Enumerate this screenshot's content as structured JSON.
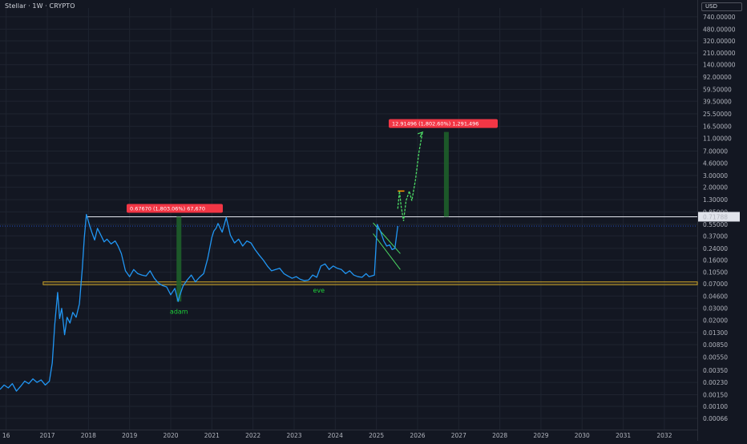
{
  "header": {
    "title": "Stellar · 1W · CRYPTO",
    "currency": "USD"
  },
  "chart_data": {
    "type": "line",
    "title": "Stellar · 1W · CRYPTO",
    "xlabel": "",
    "ylabel": "",
    "y_scale": "log",
    "ylim": [
      0.00066,
      740
    ],
    "xlim": [
      2015.85,
      2032.8
    ],
    "grid": true,
    "y_ticks": [
      "740.00000",
      "480.00000",
      "320.00000",
      "210.00000",
      "140.00000",
      "92.00000",
      "59.50000",
      "39.50000",
      "25.50000",
      "16.50000",
      "11.00000",
      "7.00000",
      "4.60000",
      "3.00000",
      "2.00000",
      "1.30000",
      "0.85000",
      "0.55000",
      "0.37000",
      "0.24000",
      "0.16000",
      "0.10500",
      "0.07000",
      "0.04600",
      "0.03000",
      "0.02000",
      "0.01300",
      "0.00850",
      "0.00550",
      "0.00350",
      "0.00230",
      "0.00150",
      "0.00100",
      "0.00066"
    ],
    "x_ticks": [
      "16",
      "2017",
      "2018",
      "2019",
      "2020",
      "2021",
      "2022",
      "2023",
      "2024",
      "2025",
      "2026",
      "2027",
      "2028",
      "2029",
      "2030",
      "2031",
      "2032"
    ],
    "series": [
      {
        "color": "#2196f3",
        "x": [
          2015.85,
          2015.95,
          2016.05,
          2016.15,
          2016.25,
          2016.35,
          2016.45,
          2016.55,
          2016.65,
          2016.75,
          2016.85,
          2016.95,
          2017.05,
          2017.12,
          2017.18,
          2017.25,
          2017.3,
          2017.35,
          2017.42,
          2017.48,
          2017.55,
          2017.62,
          2017.7,
          2017.78,
          2017.85,
          2017.9,
          2017.95,
          2018.02,
          2018.08,
          2018.15,
          2018.22,
          2018.3,
          2018.38,
          2018.45,
          2018.55,
          2018.65,
          2018.72,
          2018.8,
          2018.9,
          2019.0,
          2019.1,
          2019.2,
          2019.3,
          2019.4,
          2019.5,
          2019.6,
          2019.7,
          2019.8,
          2019.9,
          2020.0,
          2020.1,
          2020.18,
          2020.22,
          2020.3,
          2020.4,
          2020.5,
          2020.6,
          2020.7,
          2020.8,
          2020.9,
          2021.0,
          2021.05,
          2021.1,
          2021.15,
          2021.25,
          2021.35,
          2021.45,
          2021.55,
          2021.65,
          2021.75,
          2021.85,
          2021.95,
          2022.05,
          2022.15,
          2022.25,
          2022.35,
          2022.45,
          2022.55,
          2022.65,
          2022.75,
          2022.85,
          2022.95,
          2023.05,
          2023.15,
          2023.25,
          2023.35,
          2023.45,
          2023.55,
          2023.65,
          2023.75,
          2023.85,
          2023.95,
          2024.05,
          2024.15,
          2024.25,
          2024.35,
          2024.45,
          2024.55,
          2024.65,
          2024.75,
          2024.82,
          2024.88,
          2024.95,
          2025.02,
          2025.1,
          2025.18,
          2025.25,
          2025.32,
          2025.38,
          2025.45,
          2025.52
        ],
        "y": [
          0.0018,
          0.0021,
          0.0019,
          0.0022,
          0.0017,
          0.002,
          0.0024,
          0.0022,
          0.0026,
          0.0023,
          0.0025,
          0.0021,
          0.0024,
          0.0045,
          0.017,
          0.052,
          0.021,
          0.03,
          0.012,
          0.022,
          0.018,
          0.026,
          0.022,
          0.035,
          0.12,
          0.35,
          0.78,
          0.55,
          0.42,
          0.32,
          0.48,
          0.38,
          0.3,
          0.33,
          0.28,
          0.31,
          0.26,
          0.2,
          0.11,
          0.09,
          0.115,
          0.1,
          0.095,
          0.092,
          0.11,
          0.085,
          0.072,
          0.066,
          0.063,
          0.048,
          0.06,
          0.038,
          0.047,
          0.065,
          0.08,
          0.095,
          0.075,
          0.088,
          0.1,
          0.17,
          0.35,
          0.44,
          0.48,
          0.57,
          0.42,
          0.7,
          0.38,
          0.29,
          0.33,
          0.26,
          0.31,
          0.29,
          0.23,
          0.19,
          0.16,
          0.13,
          0.11,
          0.115,
          0.12,
          0.1,
          0.092,
          0.085,
          0.09,
          0.082,
          0.078,
          0.08,
          0.095,
          0.088,
          0.13,
          0.14,
          0.115,
          0.13,
          0.12,
          0.115,
          0.1,
          0.11,
          0.095,
          0.09,
          0.088,
          0.1,
          0.09,
          0.092,
          0.095,
          0.55,
          0.43,
          0.31,
          0.26,
          0.27,
          0.23,
          0.24,
          0.52
        ]
      }
    ],
    "projection": {
      "color": "#4cd964",
      "x": [
        2025.52,
        2025.56,
        2025.6,
        2025.66,
        2025.72,
        2025.8,
        2025.86,
        2025.95,
        2026.03,
        2026.12
      ],
      "y": [
        0.95,
        1.75,
        1.05,
        0.62,
        1.25,
        1.75,
        1.25,
        2.6,
        6.5,
        13.5
      ]
    },
    "resistance_level": 0.71788,
    "support_band": [
      0.068,
      0.075
    ],
    "annotations": [
      {
        "label": "adam",
        "x": 2020.2,
        "y": 0.025,
        "color": "#1fcf3a"
      },
      {
        "label": "eve",
        "x": 2023.6,
        "y": 0.052,
        "color": "#1fcf3a"
      }
    ],
    "measure_boxes": [
      {
        "text": "0.67670 (1,803.06%) 67,670",
        "x": 2020.2,
        "y_from": 0.038,
        "y_to": 0.718
      },
      {
        "text": "12.91496 (1,802.60%) 1,291,496",
        "x": 2026.7,
        "y_from": 0.718,
        "y_to": 13.6
      }
    ],
    "price_tag": "0.71788"
  }
}
